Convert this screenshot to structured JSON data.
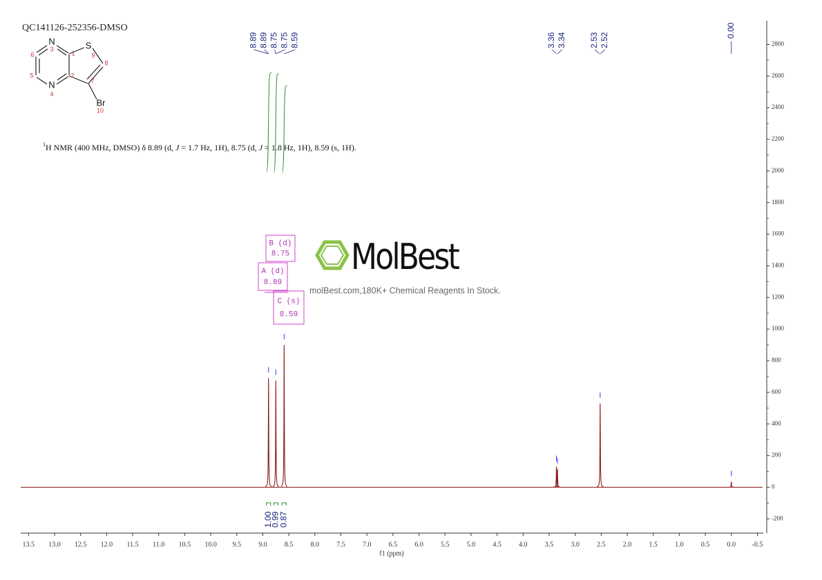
{
  "chart_data": {
    "type": "spectrum",
    "title": "QC141126-252356-DMSO",
    "x_label": "f1 (ppm)",
    "xlim": [
      13.65,
      -0.6
    ],
    "xticks": [
      13.5,
      {
        "value": 13,
        "label": "13.0"
      },
      12.5,
      {
        "value": 12,
        "label": "12.0"
      },
      11.5,
      {
        "value": 11,
        "label": "11.0"
      },
      10.5,
      {
        "value": 10,
        "label": "10.0"
      },
      9.5,
      {
        "value": 9,
        "label": "9.0"
      },
      8.5,
      {
        "value": 8,
        "label": "8.0"
      },
      7.5,
      {
        "value": 7,
        "label": "7.0"
      },
      6.5,
      {
        "value": 6,
        "label": "6.0"
      },
      5.5,
      {
        "value": 5,
        "label": "5.0"
      },
      4.5,
      {
        "value": 4,
        "label": "4.0"
      },
      3.5,
      {
        "value": 3,
        "label": "3.0"
      },
      2.5,
      {
        "value": 2,
        "label": "2.0"
      },
      1.5,
      {
        "value": 1,
        "label": "1.0"
      },
      0.5,
      {
        "value": 0,
        "label": "0.0"
      },
      -0.5
    ],
    "ylim": [
      -290,
      2950
    ],
    "yticks": [
      -200,
      0,
      200,
      400,
      600,
      800,
      1000,
      1200,
      1400,
      1600,
      1800,
      2000,
      2200,
      2400,
      2600,
      2800
    ],
    "color": "#8b1a1a",
    "peaks": {
      "shifts": [
        8.89,
        8.75,
        8.59,
        3.36,
        3.34,
        2.52,
        0.0
      ],
      "heights": [
        690,
        675,
        900,
        130,
        115,
        530,
        35
      ]
    },
    "peak_labels": [
      8.89,
      8.89,
      8.75,
      8.75,
      8.59,
      3.36,
      3.34,
      2.53,
      2.52,
      {
        "value": 0,
        "label": "0.00"
      }
    ],
    "integrals": {
      "ranges": [
        [
          8.93,
          8.85
        ],
        [
          8.79,
          8.71
        ],
        [
          8.63,
          8.55
        ]
      ],
      "values": [
        1,
        0.99,
        0.87
      ],
      "value_labels": [
        "1.00",
        "0.99",
        "0.87"
      ]
    },
    "multiplets": [
      {
        "label": "A (d)",
        "shift": 8.89
      },
      {
        "label": "B (d)",
        "shift": 8.75
      },
      {
        "label": "C (s)",
        "shift": 8.59
      }
    ],
    "annotation": [
      "1",
      "H NMR (400 MHz, DMSO) δ 8.89 (d, ",
      "J",
      " = 1.7 Hz, 1H), 8.75 (d, ",
      "J",
      " = 1.8 Hz, 1H), 8.59 (s, 1H)."
    ],
    "watermark": {
      "brand": "MolBest",
      "tagline": "molBest.com,180K+ Chemical Reagents In Stock."
    },
    "structure": {
      "atoms": [
        {
          "symbol": "N",
          "number": 3
        },
        {
          "symbol": "S",
          "number": 9
        },
        {
          "symbol": "N",
          "number": 4
        },
        {
          "symbol": "Br",
          "number": 10
        }
      ],
      "locants": [
        1,
        2,
        5,
        6,
        7,
        8
      ]
    }
  }
}
